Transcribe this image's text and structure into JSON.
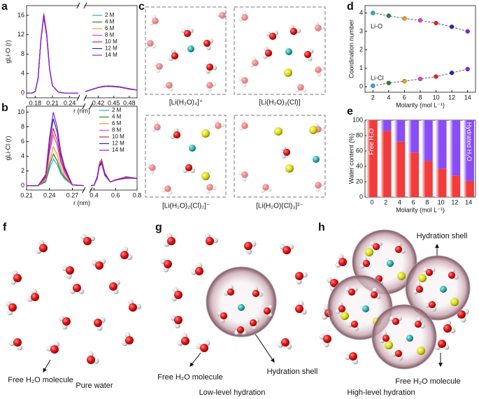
{
  "chart_data": [
    {
      "panel": "a",
      "type": "line",
      "ylabel": "gLi-O (r)",
      "xlabel": "r (nm)",
      "x": [
        0.165,
        0.175,
        0.18,
        0.185,
        0.19,
        0.195,
        0.2,
        0.205,
        0.21,
        0.22,
        0.23,
        0.255,
        0.325,
        0.395,
        0.41,
        0.42,
        0.43,
        0.44,
        0.46,
        0.48,
        0.495
      ],
      "xlim": [
        0.165,
        0.495
      ],
      "xbreak": [
        0.255,
        0.395
      ],
      "xticks": [
        0.18,
        0.21,
        0.24,
        0.42,
        0.45,
        0.48
      ],
      "ylim": [
        -1,
        18
      ],
      "yticks": [
        0,
        4,
        8,
        12,
        16
      ],
      "legend": "upper right",
      "series": [
        {
          "name": "2 M",
          "color": "#2aa7df",
          "values": [
            0,
            0,
            0.3,
            3,
            11,
            16.0,
            12.0,
            5,
            1.5,
            0.2,
            0,
            0,
            null,
            0.3,
            0.8,
            1.1,
            1.3,
            1.35,
            1.2,
            0.8,
            0.6
          ]
        },
        {
          "name": "4 M",
          "color": "#1b8a2a",
          "values": [
            0,
            0,
            0.3,
            3,
            11,
            16.2,
            12.2,
            5,
            1.5,
            0.2,
            0,
            0,
            null,
            0.3,
            0.8,
            1.1,
            1.3,
            1.35,
            1.2,
            0.8,
            0.6
          ]
        },
        {
          "name": "6 M",
          "color": "#f29a1f",
          "values": [
            0,
            0,
            0.3,
            3,
            11,
            16.5,
            12.4,
            5,
            1.5,
            0.2,
            0,
            0,
            null,
            0.3,
            0.8,
            1.1,
            1.3,
            1.4,
            1.2,
            0.8,
            0.6
          ]
        },
        {
          "name": "8 M",
          "color": "#e23fe0",
          "values": [
            0,
            0,
            0.3,
            3,
            11,
            16.3,
            12.2,
            5,
            1.5,
            0.2,
            0,
            0,
            null,
            0.3,
            0.8,
            1.1,
            1.3,
            1.4,
            1.25,
            0.8,
            0.6
          ]
        },
        {
          "name": "10 M",
          "color": "#e21f2a",
          "values": [
            0,
            0,
            0.3,
            3,
            11,
            16.1,
            12.0,
            5,
            1.5,
            0.2,
            0,
            0,
            null,
            0.3,
            0.8,
            1.1,
            1.35,
            1.4,
            1.25,
            0.85,
            0.6
          ]
        },
        {
          "name": "12 M",
          "color": "#2329b8",
          "values": [
            0,
            0,
            0.3,
            3,
            11,
            15.8,
            11.8,
            5,
            1.5,
            0.2,
            0,
            0,
            null,
            0.3,
            0.8,
            1.15,
            1.35,
            1.45,
            1.3,
            0.85,
            0.6
          ]
        },
        {
          "name": "14 M",
          "color": "#8a22e0",
          "values": [
            0,
            0,
            0.3,
            3,
            11,
            15.6,
            11.6,
            5,
            1.5,
            0.2,
            0,
            0,
            null,
            0.3,
            0.8,
            1.15,
            1.4,
            1.45,
            1.3,
            0.9,
            0.6
          ]
        }
      ]
    },
    {
      "panel": "b",
      "type": "line",
      "ylabel": "gLi-Cl (r)",
      "xlabel": "r (nm)",
      "x": [
        0.21,
        0.225,
        0.235,
        0.24,
        0.245,
        0.25,
        0.255,
        0.26,
        0.27,
        0.285,
        0.33,
        0.37,
        0.4,
        0.43,
        0.45,
        0.47,
        0.5,
        0.55,
        0.6,
        0.7,
        0.8
      ],
      "xlim": [
        0.21,
        0.8
      ],
      "xbreak": [
        0.285,
        0.37
      ],
      "xticks": [
        0.21,
        0.24,
        0.27,
        0.4,
        0.6,
        0.8
      ],
      "ylim": [
        -0.6,
        10.8
      ],
      "yticks": [
        0,
        2,
        4,
        6,
        8,
        10
      ],
      "legend": "upper right",
      "series": [
        {
          "name": "2 M",
          "color": "#2aa7df",
          "values": [
            0,
            0,
            0.5,
            2.3,
            3.6,
            2.9,
            1.6,
            0.9,
            0.1,
            0,
            null,
            0,
            0.05,
            1.2,
            2.9,
            3.4,
            1.7,
            0.5,
            0.8,
            1.25,
            1.0
          ]
        },
        {
          "name": "4 M",
          "color": "#1b8a2a",
          "values": [
            0,
            0,
            0.6,
            2.8,
            4.3,
            3.4,
            1.9,
            1.1,
            0.1,
            0,
            null,
            0,
            0.05,
            1.3,
            3.1,
            3.6,
            1.8,
            0.5,
            0.8,
            1.2,
            1.0
          ]
        },
        {
          "name": "6 M",
          "color": "#f29a1f",
          "values": [
            0,
            0,
            0.8,
            3.4,
            5.3,
            4.2,
            2.4,
            1.3,
            0.1,
            0,
            null,
            0,
            0.05,
            1.2,
            3.0,
            3.5,
            1.7,
            0.5,
            0.8,
            1.2,
            1.0
          ]
        },
        {
          "name": "8 M",
          "color": "#e23fe0",
          "values": [
            0,
            0,
            1.0,
            4.5,
            6.9,
            5.5,
            3.1,
            1.7,
            0.1,
            0,
            null,
            0,
            0.05,
            1.2,
            2.9,
            3.4,
            1.7,
            0.5,
            0.8,
            1.15,
            1.0
          ]
        },
        {
          "name": "10 M",
          "color": "#e21f2a",
          "values": [
            0,
            0,
            1.2,
            5.1,
            7.8,
            6.2,
            3.5,
            2.0,
            0.1,
            0,
            null,
            0,
            0.05,
            1.1,
            2.8,
            3.3,
            1.6,
            0.5,
            0.8,
            1.1,
            1.0
          ]
        },
        {
          "name": "12 M",
          "color": "#2329b8",
          "values": [
            0,
            0,
            1.4,
            5.9,
            9.1,
            7.3,
            4.1,
            2.3,
            0.1,
            0,
            null,
            0,
            0.05,
            1.1,
            2.7,
            3.1,
            1.5,
            0.5,
            0.75,
            1.05,
            1.0
          ]
        },
        {
          "name": "14 M",
          "color": "#8a22e0",
          "values": [
            0,
            0,
            1.5,
            6.5,
            10.0,
            8.0,
            4.5,
            2.5,
            0.1,
            0,
            null,
            0,
            0.05,
            1.0,
            2.6,
            3.0,
            1.4,
            0.5,
            0.75,
            1.0,
            1.0
          ]
        }
      ]
    },
    {
      "panel": "d",
      "type": "line",
      "ylabel": "Coordination number",
      "xlabel": "Molarity (mol L⁻¹)",
      "x": [
        2,
        4,
        6,
        8,
        10,
        12,
        14
      ],
      "xlim": [
        1,
        15
      ],
      "xticks": [
        2,
        4,
        6,
        8,
        10,
        12,
        14
      ],
      "ylim": [
        -0.3,
        4.4
      ],
      "yticks": [
        0,
        1,
        2,
        3,
        4
      ],
      "marker_colors": [
        "#2aa7df",
        "#1b8a2a",
        "#f29a1f",
        "#e23fe0",
        "#e21f2a",
        "#2329b8",
        "#8a22e0"
      ],
      "series": [
        {
          "name": "Li-O",
          "color": "#333333",
          "dashed": true,
          "values": [
            4.0,
            3.85,
            3.7,
            3.6,
            3.45,
            3.25,
            3.0
          ]
        },
        {
          "name": "Li-Cl",
          "color": "#333333",
          "dashed": true,
          "values": [
            0.05,
            0.2,
            0.3,
            0.42,
            0.55,
            0.75,
            0.95
          ]
        }
      ]
    },
    {
      "panel": "e",
      "type": "bar",
      "stacked": true,
      "ylabel": "Water content (%)",
      "xlabel": "Molarity (mol L⁻¹)",
      "x": [
        0,
        2,
        4,
        6,
        8,
        10,
        12,
        14
      ],
      "xlim": [
        -1,
        15
      ],
      "xticks": [
        0,
        2,
        4,
        6,
        8,
        10,
        12,
        14
      ],
      "ylim": [
        0,
        100
      ],
      "yticks": [
        0,
        20,
        40,
        60,
        80,
        100
      ],
      "series": [
        {
          "name": "Free H₂O",
          "color": "#f23b3b",
          "values": [
            100,
            86,
            72,
            58,
            47,
            37,
            28,
            21
          ]
        },
        {
          "name": "Hydrated H₂O",
          "color": "#8a4cf5",
          "values": [
            0,
            14,
            28,
            42,
            53,
            63,
            72,
            79
          ]
        }
      ]
    }
  ],
  "panel_c": {
    "panel": "c",
    "labels": [
      "[Li(H₂O)₄]⁺",
      "[Li(H₂O)₃(Cl)]",
      "[Li(H₂O)₂(Cl)₂]⁻",
      "[Li(H₂O)(Cl)₃]²⁻"
    ]
  },
  "panel_f": {
    "panel": "f",
    "annotation": "Free H₂O molecule",
    "caption": "Pure water"
  },
  "panel_g": {
    "panel": "g",
    "annotations": [
      "Free H₂O molecule",
      "Hydration shell"
    ],
    "caption": "Low-level hydration"
  },
  "panel_h": {
    "panel": "h",
    "annotations": [
      "Hydration shell",
      "Free H₂O molecule"
    ],
    "caption": "High-level hydration"
  }
}
